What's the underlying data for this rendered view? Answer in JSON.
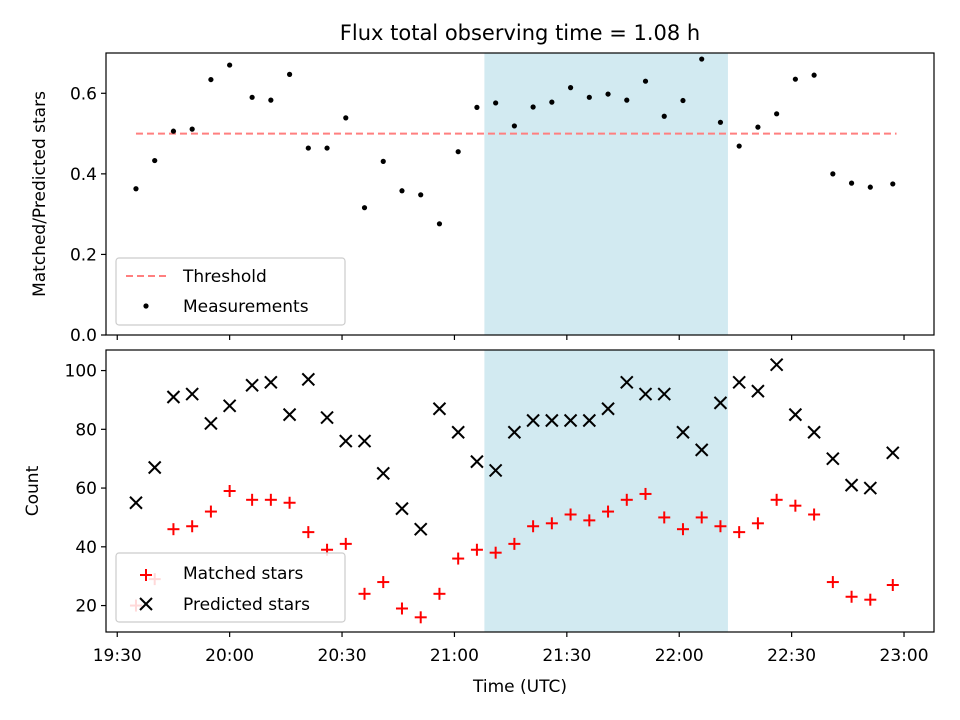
{
  "figure": {
    "title": "Flux total observing time = 1.08 h",
    "xlabel": "Time (UTC)"
  },
  "chart_data": [
    {
      "type": "scatter",
      "ylabel": "Matched/Predicted stars",
      "xlim": [
        "19:27",
        "23:08"
      ],
      "ylim": [
        0,
        0.7
      ],
      "yticks": [
        "0.0",
        "0.2",
        "0.4",
        "0.6"
      ],
      "shaded_region": {
        "x0": "21:08",
        "x1": "22:13",
        "color": "#add8e6"
      },
      "threshold": {
        "name": "Threshold",
        "value": 0.5,
        "x0": "19:35",
        "x1": "22:58",
        "color": "#ff7f7f",
        "style": "dashed"
      },
      "series": [
        {
          "name": "Measurements",
          "color": "#000000",
          "marker": "dot",
          "points": [
            [
              "19:35",
              0.363
            ],
            [
              "19:40",
              0.433
            ],
            [
              "19:45",
              0.506
            ],
            [
              "19:50",
              0.511
            ],
            [
              "19:55",
              0.634
            ],
            [
              "20:00",
              0.67
            ],
            [
              "20:06",
              0.59
            ],
            [
              "20:11",
              0.583
            ],
            [
              "20:16",
              0.647
            ],
            [
              "20:21",
              0.464
            ],
            [
              "20:26",
              0.464
            ],
            [
              "20:31",
              0.539
            ],
            [
              "20:36",
              0.316
            ],
            [
              "20:41",
              0.431
            ],
            [
              "20:46",
              0.358
            ],
            [
              "20:51",
              0.348
            ],
            [
              "20:56",
              0.276
            ],
            [
              "21:01",
              0.455
            ],
            [
              "21:06",
              0.565
            ],
            [
              "21:11",
              0.576
            ],
            [
              "21:16",
              0.519
            ],
            [
              "21:21",
              0.566
            ],
            [
              "21:26",
              0.578
            ],
            [
              "21:31",
              0.614
            ],
            [
              "21:36",
              0.59
            ],
            [
              "21:41",
              0.598
            ],
            [
              "21:46",
              0.583
            ],
            [
              "21:51",
              0.63
            ],
            [
              "21:56",
              0.543
            ],
            [
              "22:01",
              0.582
            ],
            [
              "22:06",
              0.685
            ],
            [
              "22:11",
              0.528
            ],
            [
              "22:16",
              0.469
            ],
            [
              "22:21",
              0.516
            ],
            [
              "22:26",
              0.549
            ],
            [
              "22:31",
              0.635
            ],
            [
              "22:36",
              0.645
            ],
            [
              "22:41",
              0.4
            ],
            [
              "22:46",
              0.377
            ],
            [
              "22:51",
              0.367
            ],
            [
              "22:57",
              0.375
            ]
          ]
        }
      ]
    },
    {
      "type": "scatter",
      "ylabel": "Count",
      "xlabel": "Time (UTC)",
      "xlim": [
        "19:27",
        "23:08"
      ],
      "ylim": [
        11,
        107
      ],
      "yticks": [
        "20",
        "40",
        "60",
        "80",
        "100"
      ],
      "xticks": [
        "19:30",
        "20:00",
        "20:30",
        "21:00",
        "21:30",
        "22:00",
        "22:30",
        "23:00"
      ],
      "shaded_region": {
        "x0": "21:08",
        "x1": "22:13",
        "color": "#add8e6"
      },
      "series": [
        {
          "name": "Matched stars",
          "color": "#ff0000",
          "marker": "plus",
          "points": [
            [
              "19:35",
              20
            ],
            [
              "19:40",
              29
            ],
            [
              "19:45",
              46
            ],
            [
              "19:50",
              47
            ],
            [
              "19:55",
              52
            ],
            [
              "20:00",
              59
            ],
            [
              "20:06",
              56
            ],
            [
              "20:11",
              56
            ],
            [
              "20:16",
              55
            ],
            [
              "20:21",
              45
            ],
            [
              "20:26",
              39
            ],
            [
              "20:31",
              41
            ],
            [
              "20:36",
              24
            ],
            [
              "20:41",
              28
            ],
            [
              "20:46",
              19
            ],
            [
              "20:51",
              16
            ],
            [
              "20:56",
              24
            ],
            [
              "21:01",
              36
            ],
            [
              "21:06",
              39
            ],
            [
              "21:11",
              38
            ],
            [
              "21:16",
              41
            ],
            [
              "21:21",
              47
            ],
            [
              "21:26",
              48
            ],
            [
              "21:31",
              51
            ],
            [
              "21:36",
              49
            ],
            [
              "21:41",
              52
            ],
            [
              "21:46",
              56
            ],
            [
              "21:51",
              58
            ],
            [
              "21:56",
              50
            ],
            [
              "22:01",
              46
            ],
            [
              "22:06",
              50
            ],
            [
              "22:11",
              47
            ],
            [
              "22:16",
              45
            ],
            [
              "22:21",
              48
            ],
            [
              "22:26",
              56
            ],
            [
              "22:31",
              54
            ],
            [
              "22:36",
              51
            ],
            [
              "22:41",
              28
            ],
            [
              "22:46",
              23
            ],
            [
              "22:51",
              22
            ],
            [
              "22:57",
              27
            ]
          ]
        },
        {
          "name": "Predicted stars",
          "color": "#000000",
          "marker": "x",
          "points": [
            [
              "19:35",
              55
            ],
            [
              "19:40",
              67
            ],
            [
              "19:45",
              91
            ],
            [
              "19:50",
              92
            ],
            [
              "19:55",
              82
            ],
            [
              "20:00",
              88
            ],
            [
              "20:06",
              95
            ],
            [
              "20:11",
              96
            ],
            [
              "20:16",
              85
            ],
            [
              "20:21",
              97
            ],
            [
              "20:26",
              84
            ],
            [
              "20:31",
              76
            ],
            [
              "20:36",
              76
            ],
            [
              "20:41",
              65
            ],
            [
              "20:46",
              53
            ],
            [
              "20:51",
              46
            ],
            [
              "20:56",
              87
            ],
            [
              "21:01",
              79
            ],
            [
              "21:06",
              69
            ],
            [
              "21:11",
              66
            ],
            [
              "21:16",
              79
            ],
            [
              "21:21",
              83
            ],
            [
              "21:26",
              83
            ],
            [
              "21:31",
              83
            ],
            [
              "21:36",
              83
            ],
            [
              "21:41",
              87
            ],
            [
              "21:46",
              96
            ],
            [
              "21:51",
              92
            ],
            [
              "21:56",
              92
            ],
            [
              "22:01",
              79
            ],
            [
              "22:06",
              73
            ],
            [
              "22:11",
              89
            ],
            [
              "22:16",
              96
            ],
            [
              "22:21",
              93
            ],
            [
              "22:26",
              102
            ],
            [
              "22:31",
              85
            ],
            [
              "22:36",
              79
            ],
            [
              "22:41",
              70
            ],
            [
              "22:46",
              61
            ],
            [
              "22:51",
              60
            ],
            [
              "22:57",
              72
            ]
          ]
        }
      ]
    }
  ]
}
